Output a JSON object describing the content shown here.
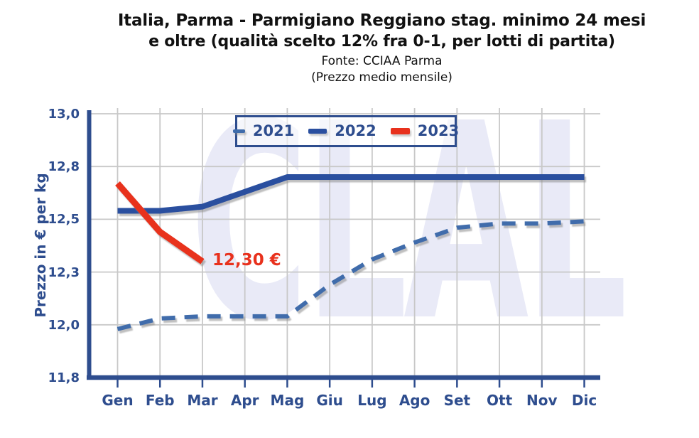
{
  "title": {
    "line1": "Italia, Parma - Parmigiano Reggiano stag. minimo 24 mesi",
    "line2": "e oltre (qualità scelto 12% fra 0-1, per lotti di partita)",
    "source": "Fonte: CCIAA Parma",
    "note": "(Prezzo medio mensile)"
  },
  "watermark": {
    "text": "CLAL",
    "color": "#e9eaf7"
  },
  "annotation": {
    "text": "12,30 €",
    "color": "#e8311d"
  },
  "colors": {
    "axis": "#2e4d8e",
    "tick_label": "#2e4d8e",
    "grid": "#c8c8c8",
    "title_text": "#111111",
    "legend_border": "#2e4d8e",
    "series_2021": "#3f6cab",
    "series_2022": "#2a4f9f",
    "series_2023": "#e8311d",
    "watermark": "#e9eaf7"
  },
  "chart_data": {
    "type": "line",
    "title": "Italia, Parma - Parmigiano Reggiano stag. minimo 24 mesi e oltre (qualità scelto 12% fra 0-1, per lotti di partita)",
    "subtitle": "Fonte: CCIAA Parma (Prezzo medio mensile)",
    "xlabel": "",
    "ylabel": "Prezzo in € per kg",
    "categories": [
      "Gen",
      "Feb",
      "Mar",
      "Apr",
      "Mag",
      "Giu",
      "Lug",
      "Ago",
      "Set",
      "Ott",
      "Nov",
      "Dic"
    ],
    "ylim": [
      11.75,
      13.0
    ],
    "yticks": [
      {
        "value": 13.0,
        "label": "13,0"
      },
      {
        "value": 12.75,
        "label": "12,8"
      },
      {
        "value": 12.5,
        "label": "12,5"
      },
      {
        "value": 12.25,
        "label": "12,3"
      },
      {
        "value": 12.0,
        "label": "12,0"
      },
      {
        "value": 11.75,
        "label": "11,8"
      }
    ],
    "grid": true,
    "legend_position": "top-left inside plot area",
    "series": [
      {
        "name": "2021",
        "line_style": "dashed",
        "color": "#3f6cab",
        "values": [
          11.98,
          12.03,
          12.04,
          12.04,
          12.04,
          12.19,
          12.31,
          12.39,
          12.46,
          12.48,
          12.48,
          12.49
        ]
      },
      {
        "name": "2022",
        "line_style": "solid",
        "color": "#2a4f9f",
        "values": [
          12.54,
          12.54,
          12.56,
          12.63,
          12.7,
          12.7,
          12.7,
          12.7,
          12.7,
          12.7,
          12.7,
          12.7
        ]
      },
      {
        "name": "2023",
        "line_style": "solid",
        "color": "#e8311d",
        "values": [
          12.67,
          12.44,
          12.3,
          null,
          null,
          null,
          null,
          null,
          null,
          null,
          null,
          null
        ]
      }
    ],
    "annotations": [
      {
        "text": "12,30 €",
        "series": "2023",
        "category": "Mar",
        "value": 12.3
      }
    ]
  }
}
